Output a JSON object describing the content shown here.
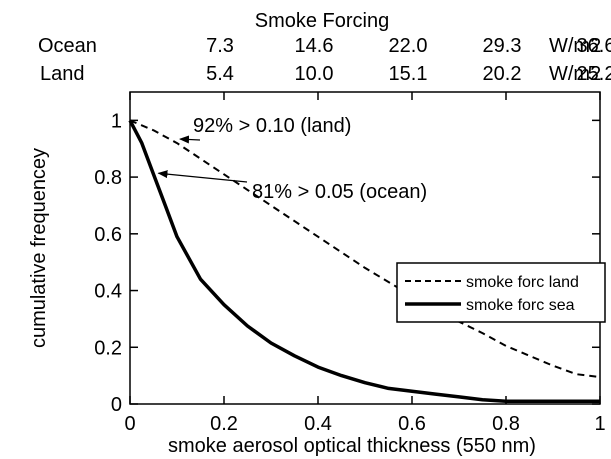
{
  "chart_data": {
    "type": "line",
    "title": "Smoke Forcing",
    "xlabel": "smoke aerosol optical thickness (550 nm)",
    "ylabel": "cumulative frequencey",
    "xlim": [
      0,
      1
    ],
    "ylim": [
      0,
      1.1
    ],
    "x_ticks": [
      "0",
      "0.2",
      "0.4",
      "0.6",
      "0.8",
      "1"
    ],
    "y_ticks": [
      "0",
      "0.2",
      "0.4",
      "0.6",
      "0.8",
      "1"
    ],
    "top_axes": [
      {
        "label": "Ocean",
        "values": [
          "7.3",
          "14.6",
          "22.0",
          "29.3",
          "36.6"
        ],
        "unit": "W/m2"
      },
      {
        "label": "Land",
        "values": [
          "5.4",
          "10.0",
          "15.1",
          "20.2",
          "25.2"
        ],
        "unit": "W/m2"
      }
    ],
    "series": [
      {
        "name": "smoke forc land",
        "style": "dashed",
        "x": [
          0,
          0.05,
          0.1,
          0.15,
          0.2,
          0.25,
          0.3,
          0.35,
          0.4,
          0.45,
          0.5,
          0.55,
          0.6,
          0.65,
          0.7,
          0.75,
          0.8,
          0.85,
          0.9,
          0.95,
          1.0
        ],
        "y": [
          1.0,
          0.965,
          0.92,
          0.865,
          0.81,
          0.755,
          0.7,
          0.645,
          0.59,
          0.535,
          0.48,
          0.43,
          0.38,
          0.335,
          0.29,
          0.25,
          0.205,
          0.17,
          0.135,
          0.105,
          0.095
        ]
      },
      {
        "name": "smoke forc sea",
        "style": "solid",
        "x": [
          0,
          0.025,
          0.05,
          0.075,
          0.1,
          0.15,
          0.2,
          0.25,
          0.3,
          0.35,
          0.4,
          0.45,
          0.5,
          0.55,
          0.6,
          0.65,
          0.7,
          0.75,
          0.8,
          0.9,
          1.0
        ],
        "y": [
          1.0,
          0.92,
          0.81,
          0.7,
          0.59,
          0.44,
          0.35,
          0.275,
          0.215,
          0.17,
          0.13,
          0.1,
          0.075,
          0.055,
          0.045,
          0.035,
          0.025,
          0.015,
          0.01,
          0.01,
          0.01
        ]
      }
    ],
    "annotations": [
      {
        "text": "92% > 0.10 (land)",
        "x": 0.1,
        "y": 0.92
      },
      {
        "text": "81% > 0.05 (ocean)",
        "x": 0.05,
        "y": 0.81
      }
    ],
    "legend": {
      "placement": "right",
      "entries": [
        "smoke forc land",
        "smoke forc sea"
      ]
    },
    "grid": false
  }
}
